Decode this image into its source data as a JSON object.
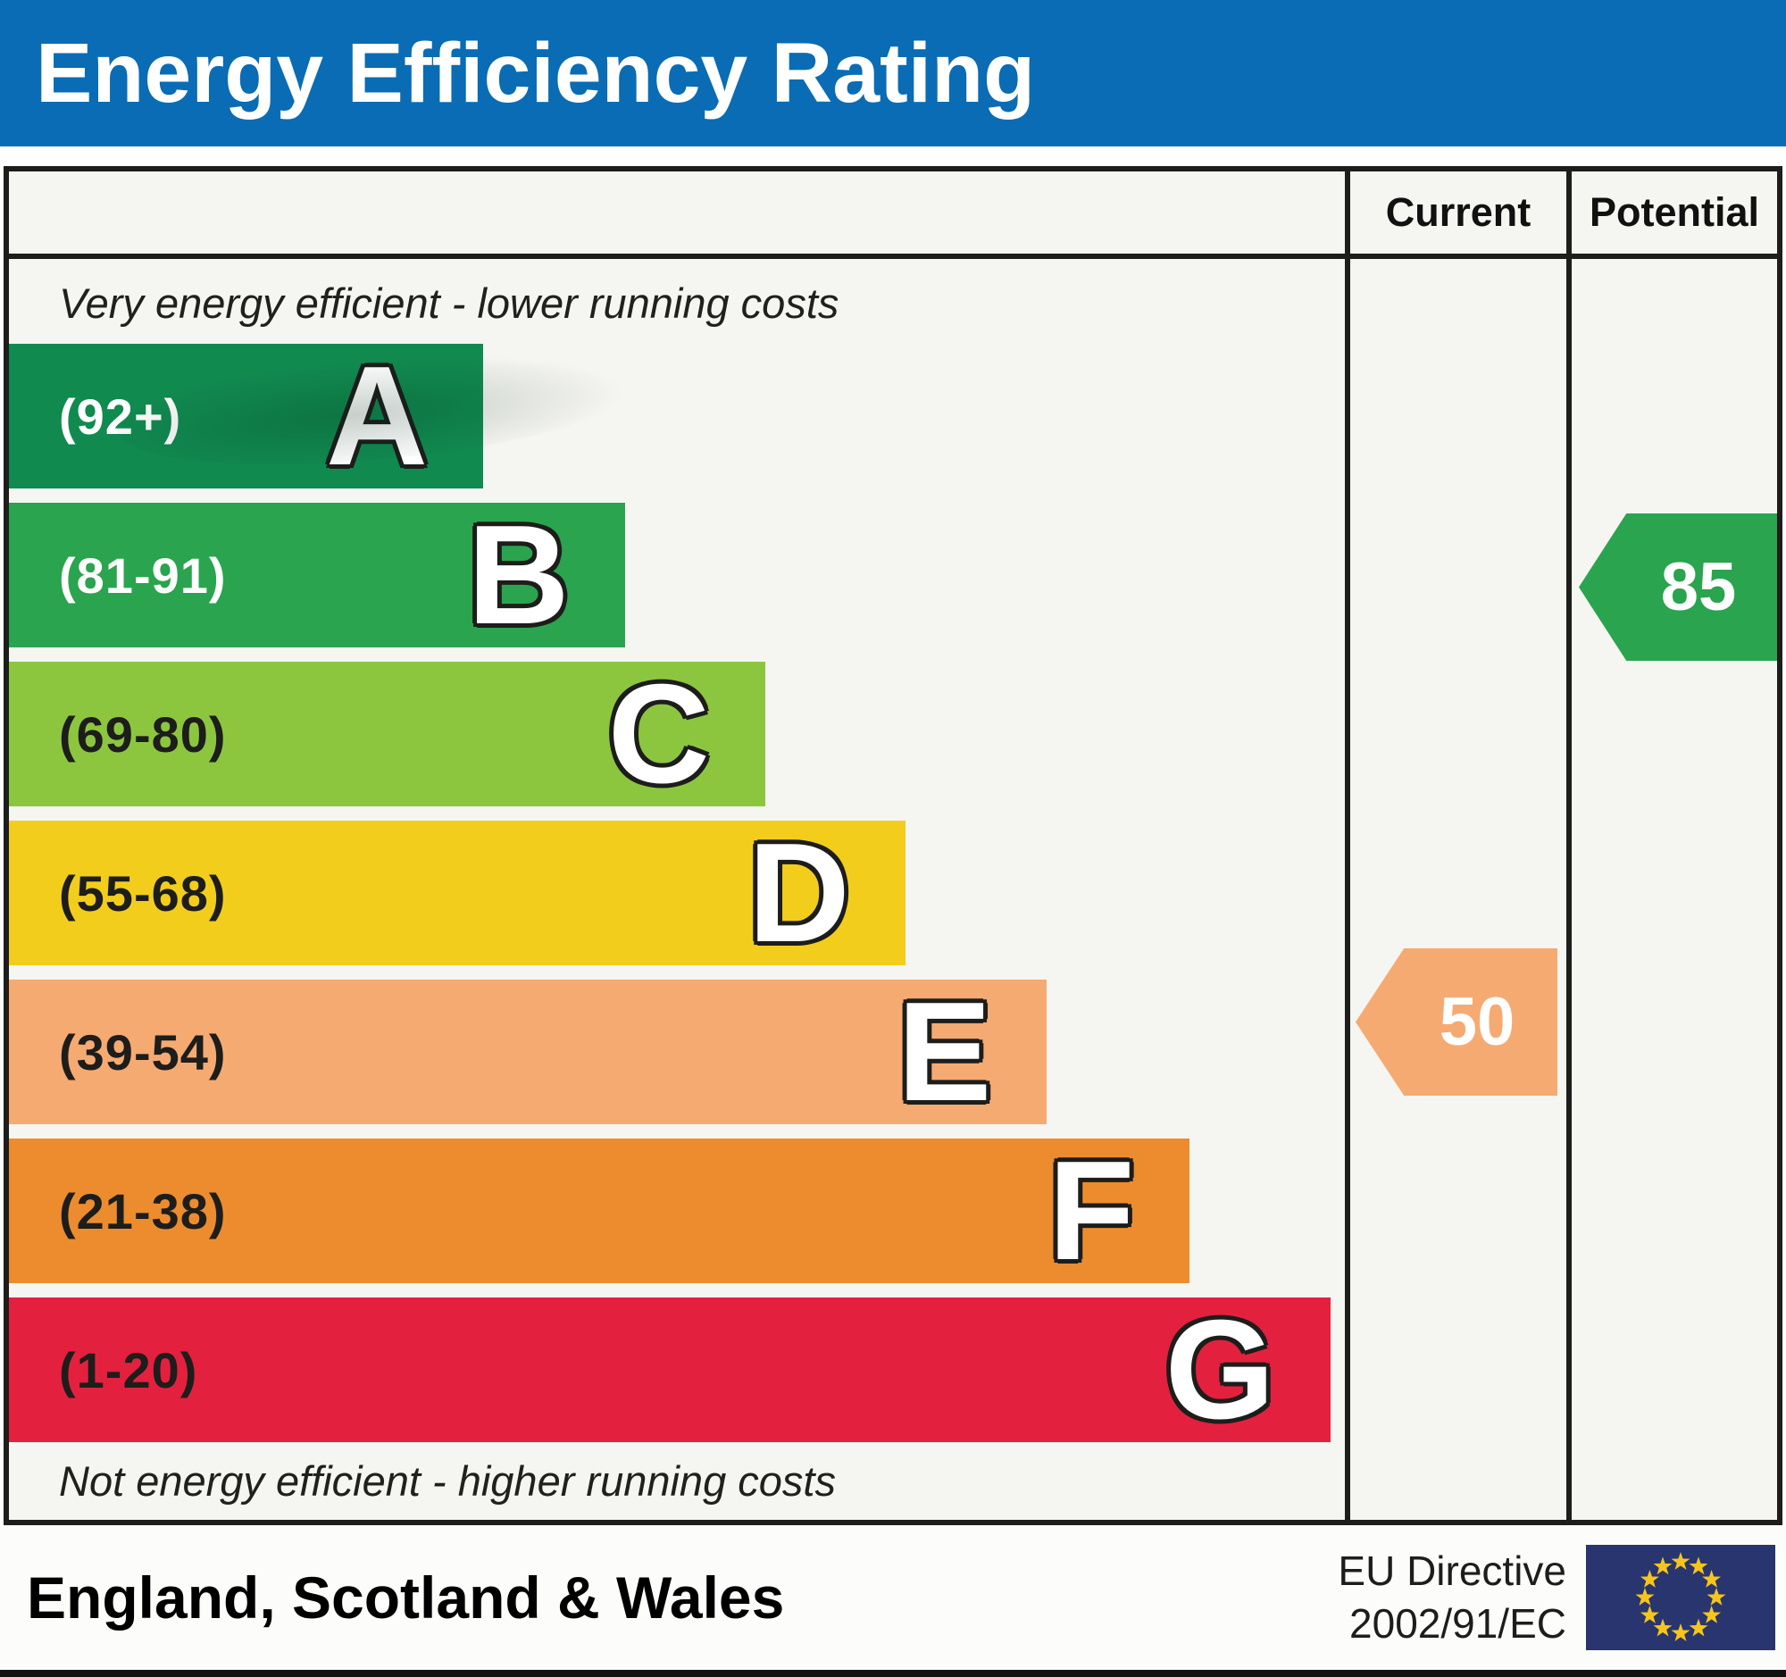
{
  "title_bar": {
    "title": "Energy Efficiency Rating"
  },
  "table": {
    "column_headers": {
      "current": "Current",
      "potential": "Potential"
    },
    "top_note": "Very energy efficient - lower running costs",
    "bottom_note": "Not energy efficient - higher running costs"
  },
  "markers": {
    "current_value": "50",
    "potential_value": "85"
  },
  "footer": {
    "region": "England, Scotland & Wales",
    "directive_line1": "EU Directive",
    "directive_line2": "2002/91/EC"
  },
  "colors": {
    "title_bar_bg": "#0a6cb4",
    "border": "#1d1d1b",
    "panel_bg": "#f5f5f1",
    "eu_flag_blue": "#29356e",
    "eu_flag_star": "#f6c51d"
  },
  "chart_data": {
    "type": "bar",
    "orientation": "horizontal",
    "title": "Energy Efficiency Rating",
    "categories": [
      "A",
      "B",
      "C",
      "D",
      "E",
      "F",
      "G"
    ],
    "ranges": [
      "(92+)",
      "(81-91)",
      "(69-80)",
      "(55-68)",
      "(39-54)",
      "(21-38)",
      "(1-20)"
    ],
    "bar_lengths_pct": [
      35.5,
      46.1,
      56.6,
      67.1,
      77.7,
      88.4,
      98.9
    ],
    "bar_colors": [
      "#118a50",
      "#2aa44e",
      "#8cc63f",
      "#f2cd1c",
      "#f5aa72",
      "#ec8c2e",
      "#e4203f"
    ],
    "range_label_colors": [
      "#ffffff",
      "#ffffff",
      "#1d1d1b",
      "#1d1d1b",
      "#1d1d1b",
      "#1d1d1b",
      "#1d1d1b"
    ],
    "current": {
      "value": 50,
      "band": "E"
    },
    "potential": {
      "value": 85,
      "band": "B"
    },
    "column_headers": [
      "Current",
      "Potential"
    ],
    "annotations": [
      "Very energy efficient - lower running costs",
      "Not energy efficient - higher running costs"
    ],
    "region_label": "England, Scotland & Wales",
    "directive": "EU Directive 2002/91/EC"
  }
}
